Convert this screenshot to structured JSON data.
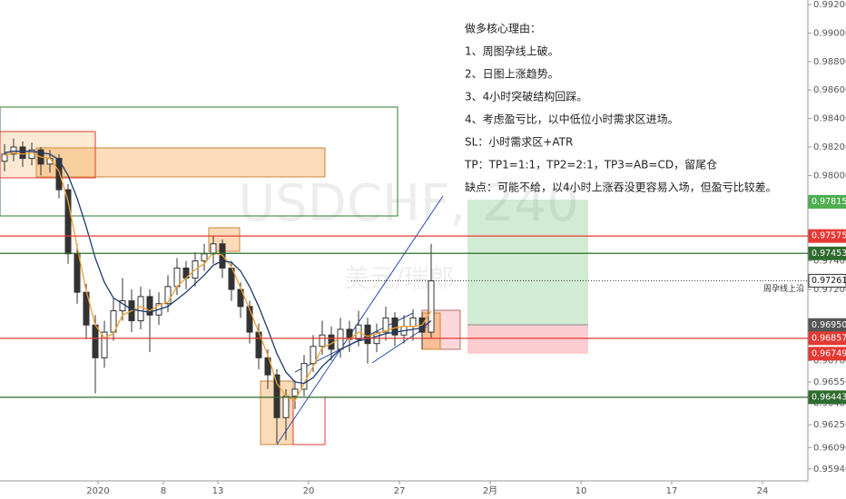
{
  "chart_data": {
    "type": "candlestick",
    "watermark": "USDCHF, 240",
    "watermark_sub": "美元/瑞郎",
    "candle_color": "#333333",
    "xlim": [
      -12,
      32.5
    ],
    "ylim": [
      0.95856,
      0.99232
    ],
    "x": [
      -11.75,
      -11.25,
      -10.75,
      -10.25,
      -9.75,
      -9.25,
      -8.75,
      -8.25,
      -7.75,
      -7.25,
      -6.75,
      -6.25,
      -5.75,
      -5.25,
      -4.75,
      -4.25,
      -3.75,
      -3.25,
      -2.75,
      -2.25,
      -1.75,
      -1.25,
      -0.75,
      -0.25,
      0.25,
      0.75,
      1.25,
      1.75,
      2.25,
      2.75,
      3.25,
      3.75,
      4.25,
      4.75,
      5.25,
      5.75,
      6.25,
      6.75,
      7.25,
      7.75,
      8.25,
      8.75,
      9.25,
      9.75,
      10.25,
      10.75,
      11.25,
      11.75
    ],
    "open": [
      0.981,
      0.9815,
      0.982,
      0.9812,
      0.9818,
      0.9808,
      0.9812,
      0.979,
      0.9745,
      0.9718,
      0.9695,
      0.9672,
      0.969,
      0.9705,
      0.9712,
      0.9698,
      0.9715,
      0.9702,
      0.971,
      0.9722,
      0.9735,
      0.9728,
      0.974,
      0.9745,
      0.9752,
      0.9735,
      0.972,
      0.9708,
      0.969,
      0.9672,
      0.966,
      0.963,
      0.9645,
      0.965,
      0.9668,
      0.968,
      0.9688,
      0.9678,
      0.9692,
      0.9685,
      0.9695,
      0.9682,
      0.969,
      0.97,
      0.9688,
      0.9694,
      0.97,
      0.969
    ],
    "high": [
      0.9822,
      0.9826,
      0.9824,
      0.9823,
      0.982,
      0.9818,
      0.9815,
      0.9794,
      0.9752,
      0.9724,
      0.9702,
      0.9698,
      0.9714,
      0.9728,
      0.972,
      0.9722,
      0.972,
      0.9718,
      0.973,
      0.9742,
      0.974,
      0.9746,
      0.9752,
      0.9758,
      0.9755,
      0.974,
      0.9725,
      0.9712,
      0.9696,
      0.9678,
      0.9664,
      0.965,
      0.9656,
      0.9674,
      0.9688,
      0.9698,
      0.9694,
      0.97,
      0.9698,
      0.9705,
      0.97,
      0.9696,
      0.9708,
      0.9704,
      0.9702,
      0.9706,
      0.9704,
      0.9752
    ],
    "low": [
      0.9803,
      0.981,
      0.9806,
      0.9807,
      0.98,
      0.9802,
      0.9784,
      0.9738,
      0.971,
      0.9685,
      0.9647,
      0.9665,
      0.9684,
      0.9698,
      0.969,
      0.9692,
      0.9676,
      0.9695,
      0.9704,
      0.9716,
      0.972,
      0.9722,
      0.9733,
      0.9738,
      0.9728,
      0.9712,
      0.97,
      0.9682,
      0.9664,
      0.965,
      0.9612,
      0.9614,
      0.9636,
      0.9645,
      0.9662,
      0.9674,
      0.967,
      0.9672,
      0.9676,
      0.968,
      0.9668,
      0.9676,
      0.9684,
      0.968,
      0.9682,
      0.9684,
      0.9678,
      0.9686
    ],
    "close": [
      0.9815,
      0.982,
      0.9812,
      0.9818,
      0.9808,
      0.9812,
      0.979,
      0.9745,
      0.9718,
      0.9695,
      0.9672,
      0.969,
      0.9705,
      0.9712,
      0.9698,
      0.9715,
      0.9702,
      0.971,
      0.9722,
      0.9735,
      0.9728,
      0.974,
      0.9745,
      0.9752,
      0.9735,
      0.972,
      0.9708,
      0.969,
      0.9672,
      0.966,
      0.963,
      0.9645,
      0.965,
      0.9668,
      0.968,
      0.9688,
      0.9678,
      0.9692,
      0.9685,
      0.9695,
      0.9682,
      0.969,
      0.97,
      0.9688,
      0.9694,
      0.97,
      0.969,
      0.9726
    ],
    "lines": [
      {
        "color": "#f0a030",
        "values": [
          0.9814,
          0.9816,
          0.9815,
          0.9816,
          0.9813,
          0.9812,
          0.9803,
          0.9782,
          0.975,
          0.9719,
          0.9695,
          0.9686,
          0.9689,
          0.9702,
          0.9705,
          0.9708,
          0.9705,
          0.9709,
          0.9711,
          0.9722,
          0.9728,
          0.9734,
          0.9738,
          0.9746,
          0.9744,
          0.9736,
          0.9721,
          0.9706,
          0.969,
          0.9674,
          0.9654,
          0.9645,
          0.9642,
          0.9654,
          0.9666,
          0.9679,
          0.9682,
          0.9686,
          0.9685,
          0.969,
          0.9687,
          0.9689,
          0.9691,
          0.9693,
          0.9694,
          0.9694,
          0.9695,
          0.9705
        ]
      },
      {
        "color": "#1f3a6e",
        "values": [
          0.9816,
          0.9817,
          0.9817,
          0.9817,
          0.9816,
          0.9815,
          0.9811,
          0.98,
          0.9784,
          0.9764,
          0.9742,
          0.9725,
          0.9714,
          0.971,
          0.9706,
          0.9705,
          0.9704,
          0.9706,
          0.9708,
          0.9713,
          0.9718,
          0.9724,
          0.973,
          0.9737,
          0.974,
          0.9739,
          0.9733,
          0.9722,
          0.9708,
          0.9692,
          0.9675,
          0.9662,
          0.9655,
          0.9654,
          0.9658,
          0.9666,
          0.9672,
          0.9678,
          0.9681,
          0.9684,
          0.9685,
          0.9687,
          0.9689,
          0.969,
          0.9691,
          0.9692,
          0.9693,
          0.9698
        ]
      }
    ],
    "yticks": [
      {
        "value": 0.992,
        "label": "0.99200"
      },
      {
        "value": 0.99,
        "label": "0.99000"
      },
      {
        "value": 0.988,
        "label": "0.98800"
      },
      {
        "value": 0.986,
        "label": "0.98600"
      },
      {
        "value": 0.984,
        "label": "0.98400"
      },
      {
        "value": 0.982,
        "label": "0.98200"
      },
      {
        "value": 0.98,
        "label": "0.98000"
      },
      {
        "value": 0.974,
        "label": "0.97400"
      },
      {
        "value": 0.972,
        "label": "0.97200"
      },
      {
        "value": 0.967,
        "label": "0.96700"
      },
      {
        "value": 0.9655,
        "label": "0.96550"
      },
      {
        "value": 0.964,
        "label": "0.96400"
      },
      {
        "value": 0.9625,
        "label": "0.96250"
      },
      {
        "value": 0.9609,
        "label": "0.96090"
      },
      {
        "value": 0.9594,
        "label": "0.95940"
      }
    ],
    "xticks": [
      {
        "value": -6.6,
        "label": "2020"
      },
      {
        "value": -3,
        "label": "8"
      },
      {
        "value": 0,
        "label": "13"
      },
      {
        "value": 5,
        "label": "20"
      },
      {
        "value": 10,
        "label": "27"
      },
      {
        "value": 15,
        "label": "2月"
      },
      {
        "value": 20,
        "label": "10"
      },
      {
        "value": 25,
        "label": "17"
      },
      {
        "value": 30,
        "label": "24"
      }
    ],
    "price_lines": [
      {
        "value": 0.97815,
        "color": "#4caf50",
        "style": "none"
      },
      {
        "value": 0.97575,
        "color": "#e53935",
        "style": "solid"
      },
      {
        "value": 0.97453,
        "color": "#2e6b2e",
        "style": "solid"
      },
      {
        "value": 0.97261,
        "color": "#ffffff",
        "style": "dotted"
      },
      {
        "value": 0.9695,
        "label": "0.96950",
        "color": "#555555",
        "style": "none"
      },
      {
        "value": 0.96857,
        "color": "#e53935",
        "style": "solid"
      },
      {
        "value": 0.96749,
        "color": "#e53935",
        "style": "none"
      },
      {
        "value": 0.96443,
        "color": "#2e6b2e",
        "style": "solid"
      }
    ],
    "level_note": "周孕线上沿",
    "annotations": [
      "做多核心理由：",
      "1、周图孕线上破。",
      "2、日图上涨趋势。",
      "3、4小时突破结构回踩。",
      "4、考虑盈亏比，以中低位小时需求区进场。",
      "SL：小时需求区+ATR",
      "TP：TP1=1:1，TP2=2:1，TP3=AB=CD，留尾仓",
      "缺点：可能不给，以4小时上涨吞没更容易入场，但盈亏比较差。"
    ]
  }
}
